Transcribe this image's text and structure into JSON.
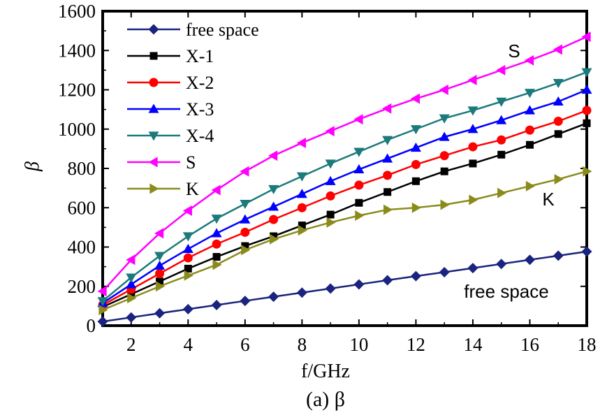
{
  "chart_data": {
    "type": "line",
    "xlabel": "f/GHz",
    "ylabel": "β",
    "caption": "(a)   β",
    "xlim": [
      1,
      18
    ],
    "ylim": [
      0,
      1600
    ],
    "xticks": [
      "2",
      "4",
      "6",
      "8",
      "10",
      "12",
      "14",
      "16",
      "18"
    ],
    "yticks": [
      "0",
      "200",
      "400",
      "600",
      "800",
      "1000",
      "1200",
      "1400",
      "1600"
    ],
    "x": [
      1,
      2,
      3,
      4,
      5,
      6,
      7,
      8,
      9,
      10,
      11,
      12,
      13,
      14,
      15,
      16,
      17,
      18
    ],
    "legend_position": "top-left",
    "series": [
      {
        "name": "free space",
        "color": "#1a237e",
        "marker": "diamond",
        "values": [
          21,
          42,
          63,
          84,
          105,
          126,
          147,
          168,
          189,
          210,
          231,
          252,
          272,
          293,
          314,
          335,
          356,
          377
        ]
      },
      {
        "name": "X-1",
        "color": "#000000",
        "marker": "square",
        "values": [
          95,
          160,
          225,
          290,
          350,
          405,
          455,
          510,
          565,
          625,
          680,
          735,
          785,
          825,
          870,
          920,
          975,
          1030
        ]
      },
      {
        "name": "X-2",
        "color": "#ff0000",
        "marker": "circle",
        "values": [
          105,
          185,
          265,
          345,
          415,
          475,
          540,
          600,
          660,
          715,
          765,
          820,
          865,
          910,
          945,
          995,
          1040,
          1095
        ]
      },
      {
        "name": "X-3",
        "color": "#0000ff",
        "marker": "triangle-up",
        "values": [
          115,
          210,
          305,
          390,
          470,
          540,
          605,
          670,
          735,
          795,
          850,
          905,
          960,
          1000,
          1045,
          1095,
          1140,
          1200
        ]
      },
      {
        "name": "X-4",
        "color": "#1b7a7a",
        "marker": "triangle-down",
        "values": [
          125,
          245,
          355,
          455,
          545,
          620,
          695,
          760,
          825,
          885,
          945,
          1000,
          1055,
          1095,
          1140,
          1185,
          1235,
          1290
        ]
      },
      {
        "name": "S",
        "color": "#ff00ff",
        "marker": "triangle-left",
        "values": [
          175,
          335,
          470,
          585,
          690,
          785,
          865,
          930,
          990,
          1050,
          1105,
          1155,
          1200,
          1250,
          1300,
          1350,
          1405,
          1470
        ]
      },
      {
        "name": "K",
        "color": "#8b8b1c",
        "marker": "triangle-right",
        "values": [
          80,
          140,
          200,
          255,
          310,
          385,
          440,
          485,
          525,
          560,
          590,
          600,
          615,
          640,
          675,
          710,
          745,
          785
        ]
      }
    ],
    "annotations": [
      "S",
      "K",
      "free space"
    ]
  }
}
